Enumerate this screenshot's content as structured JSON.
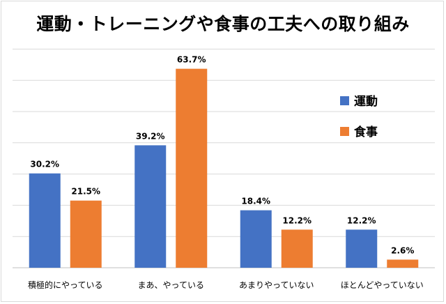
{
  "chart_data": {
    "type": "bar",
    "title": "運動・トレーニングや食事の工夫への取り組み",
    "xlabel": "",
    "ylabel": "",
    "ylim": [
      0,
      70
    ],
    "grid": true,
    "legend_position": "right",
    "categories": [
      "積極的にやっている",
      "まあ、やっている",
      "あまりやっていない",
      "ほとんどやっていない"
    ],
    "series": [
      {
        "name": "運動",
        "color": "#4472C4",
        "values": [
          30.2,
          39.2,
          18.4,
          12.2
        ],
        "labels": [
          "30.2%",
          "39.2%",
          "18.4%",
          "12.2%"
        ]
      },
      {
        "name": "食事",
        "color": "#ED7D31",
        "values": [
          21.5,
          63.7,
          12.2,
          2.6
        ],
        "labels": [
          "21.5%",
          "63.7%",
          "12.2%",
          "2.6%"
        ]
      }
    ]
  }
}
